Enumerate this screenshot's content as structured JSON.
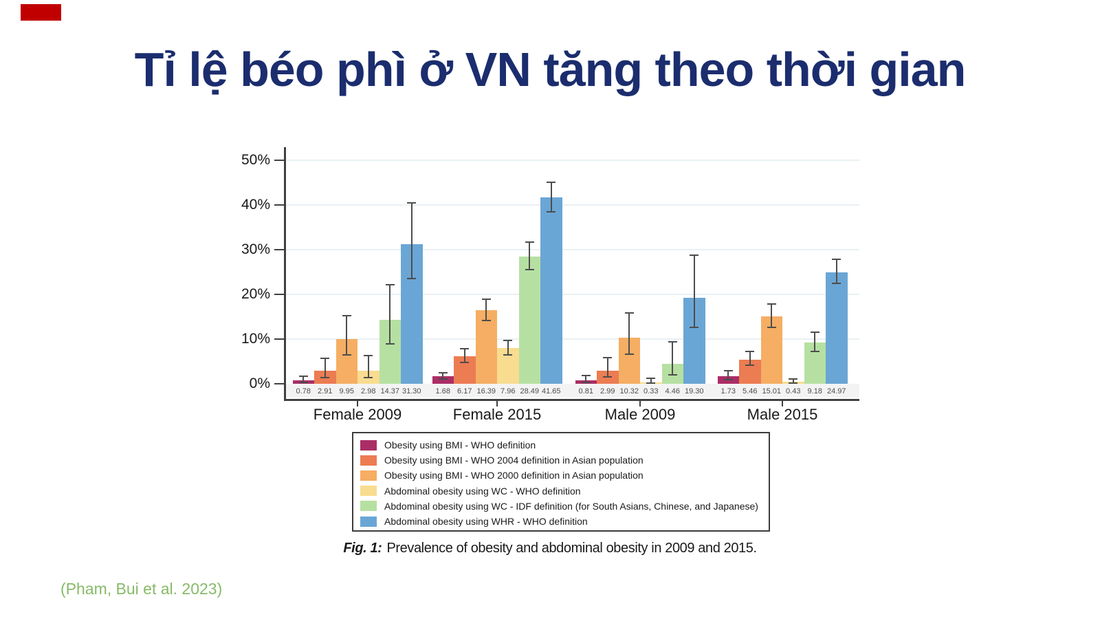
{
  "slide": {
    "title": "Tỉ lệ béo phì ở VN tăng theo thời gian",
    "citation": "(Pham, Bui et al. 2023)"
  },
  "figure": {
    "caption_label": "Fig. 1:",
    "caption_text": "Prevalence of obesity and abdominal obesity in 2009 and 2015."
  },
  "colors": {
    "title_navy": "#1b2d6e",
    "accent_red": "#c00000",
    "citation_green": "#87ba68",
    "axis": "#404040",
    "grid": "#e9f0f4",
    "band": "#f3f3f3",
    "error_bar": "#4d4d4d",
    "value_label": "#4d4d4d",
    "label_text": "#1a1a1a"
  },
  "chart_data": {
    "type": "bar",
    "title": "",
    "xlabel": "",
    "ylabel": "",
    "categories": [
      "Female 2009",
      "Female 2015",
      "Male 2009",
      "Male 2015"
    ],
    "y_tick_labels": [
      "0%",
      "10%",
      "20%",
      "30%",
      "40%",
      "50%"
    ],
    "y_tick_values": [
      0,
      10,
      20,
      30,
      40,
      50
    ],
    "ylim": [
      0,
      53
    ],
    "grid": true,
    "legend_position": "bottom-box",
    "value_label_decimals": 2,
    "series": [
      {
        "name": "Obesity using BMI - WHO definition",
        "color": "#aa2e66",
        "values": [
          0.78,
          1.68,
          0.81,
          1.73
        ],
        "ci_low": [
          0.35,
          1.15,
          0.35,
          1.0
        ],
        "ci_high": [
          1.65,
          2.45,
          1.8,
          2.95
        ]
      },
      {
        "name": "Obesity using BMI - WHO 2004 definition in Asian population",
        "color": "#ec7c52",
        "values": [
          2.91,
          6.17,
          2.99,
          5.46
        ],
        "ci_low": [
          1.45,
          4.8,
          1.5,
          4.1
        ],
        "ci_high": [
          5.7,
          7.9,
          5.9,
          7.3
        ]
      },
      {
        "name": "Obesity using BMI - WHO 2000 definition in Asian population",
        "color": "#f5ae63",
        "values": [
          9.95,
          16.39,
          10.32,
          15.01
        ],
        "ci_low": [
          6.4,
          14.2,
          6.6,
          12.6
        ],
        "ci_high": [
          15.2,
          18.9,
          15.9,
          17.9
        ]
      },
      {
        "name": "Abdominal obesity using WC - WHO definition",
        "color": "#f8dc90",
        "values": [
          2.98,
          7.96,
          0.33,
          0.43
        ],
        "ci_low": [
          1.4,
          6.4,
          0.1,
          0.15
        ],
        "ci_high": [
          6.3,
          9.7,
          1.2,
          1.1
        ]
      },
      {
        "name": "Abdominal obesity using WC - IDF definition (for South Asians, Chinese, and Japanese)",
        "color": "#b6e0a2",
        "values": [
          14.37,
          28.49,
          4.46,
          9.18
        ],
        "ci_low": [
          9.0,
          25.6,
          2.0,
          7.2
        ],
        "ci_high": [
          22.2,
          31.7,
          9.4,
          11.6
        ]
      },
      {
        "name": "Abdominal obesity using WHR - WHO definition",
        "color": "#6aa6d5",
        "values": [
          31.3,
          41.65,
          19.3,
          24.97
        ],
        "ci_low": [
          23.5,
          38.4,
          12.6,
          22.4
        ],
        "ci_high": [
          40.4,
          45.1,
          28.8,
          27.9
        ]
      }
    ]
  }
}
